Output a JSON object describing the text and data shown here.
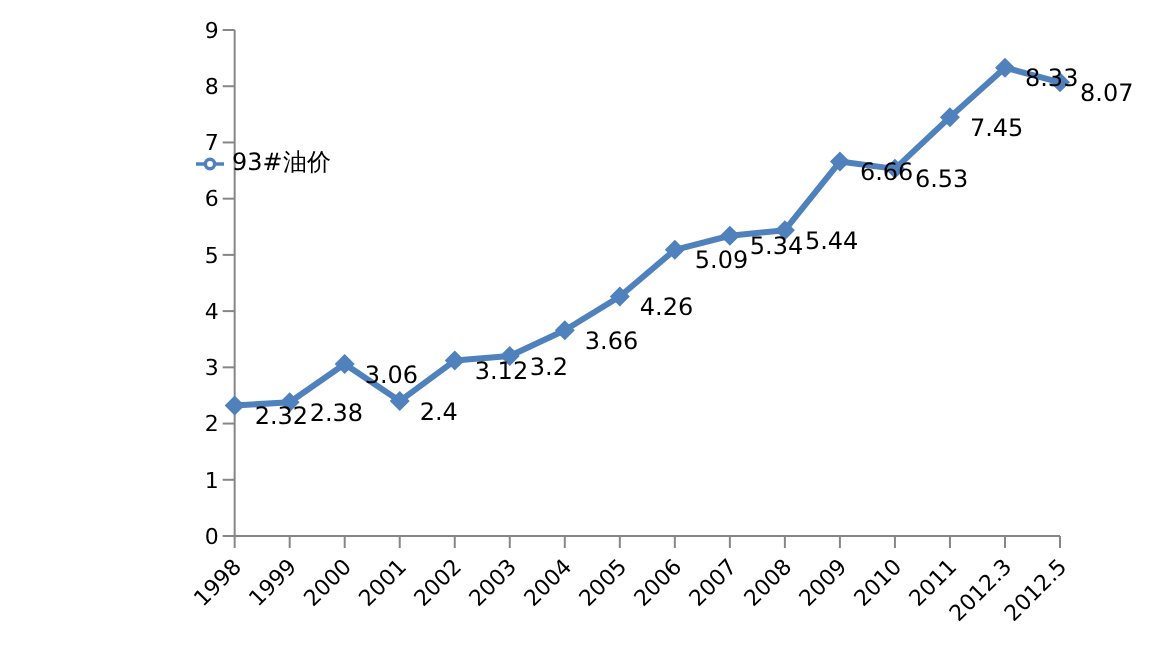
{
  "chart_data": {
    "type": "line",
    "categories": [
      "1998",
      "1999",
      "2000",
      "2001",
      "2002",
      "2003",
      "2004",
      "2005",
      "2006",
      "2007",
      "2008",
      "2009",
      "2010",
      "2011",
      "2012.3",
      "2012.5"
    ],
    "series": [
      {
        "name": "93#油价",
        "color": "#4f81bd",
        "values": [
          2.32,
          2.38,
          3.06,
          2.4,
          3.12,
          3.2,
          3.66,
          4.26,
          5.09,
          5.34,
          5.44,
          6.66,
          6.53,
          7.45,
          8.33,
          8.07
        ]
      }
    ],
    "ylim": [
      0,
      9
    ],
    "yticks": [
      0,
      1,
      2,
      3,
      4,
      5,
      6,
      7,
      8,
      9
    ],
    "grid": false,
    "legend": "top left",
    "marker": "diamond",
    "line_style": "solid",
    "data_labels": true
  }
}
